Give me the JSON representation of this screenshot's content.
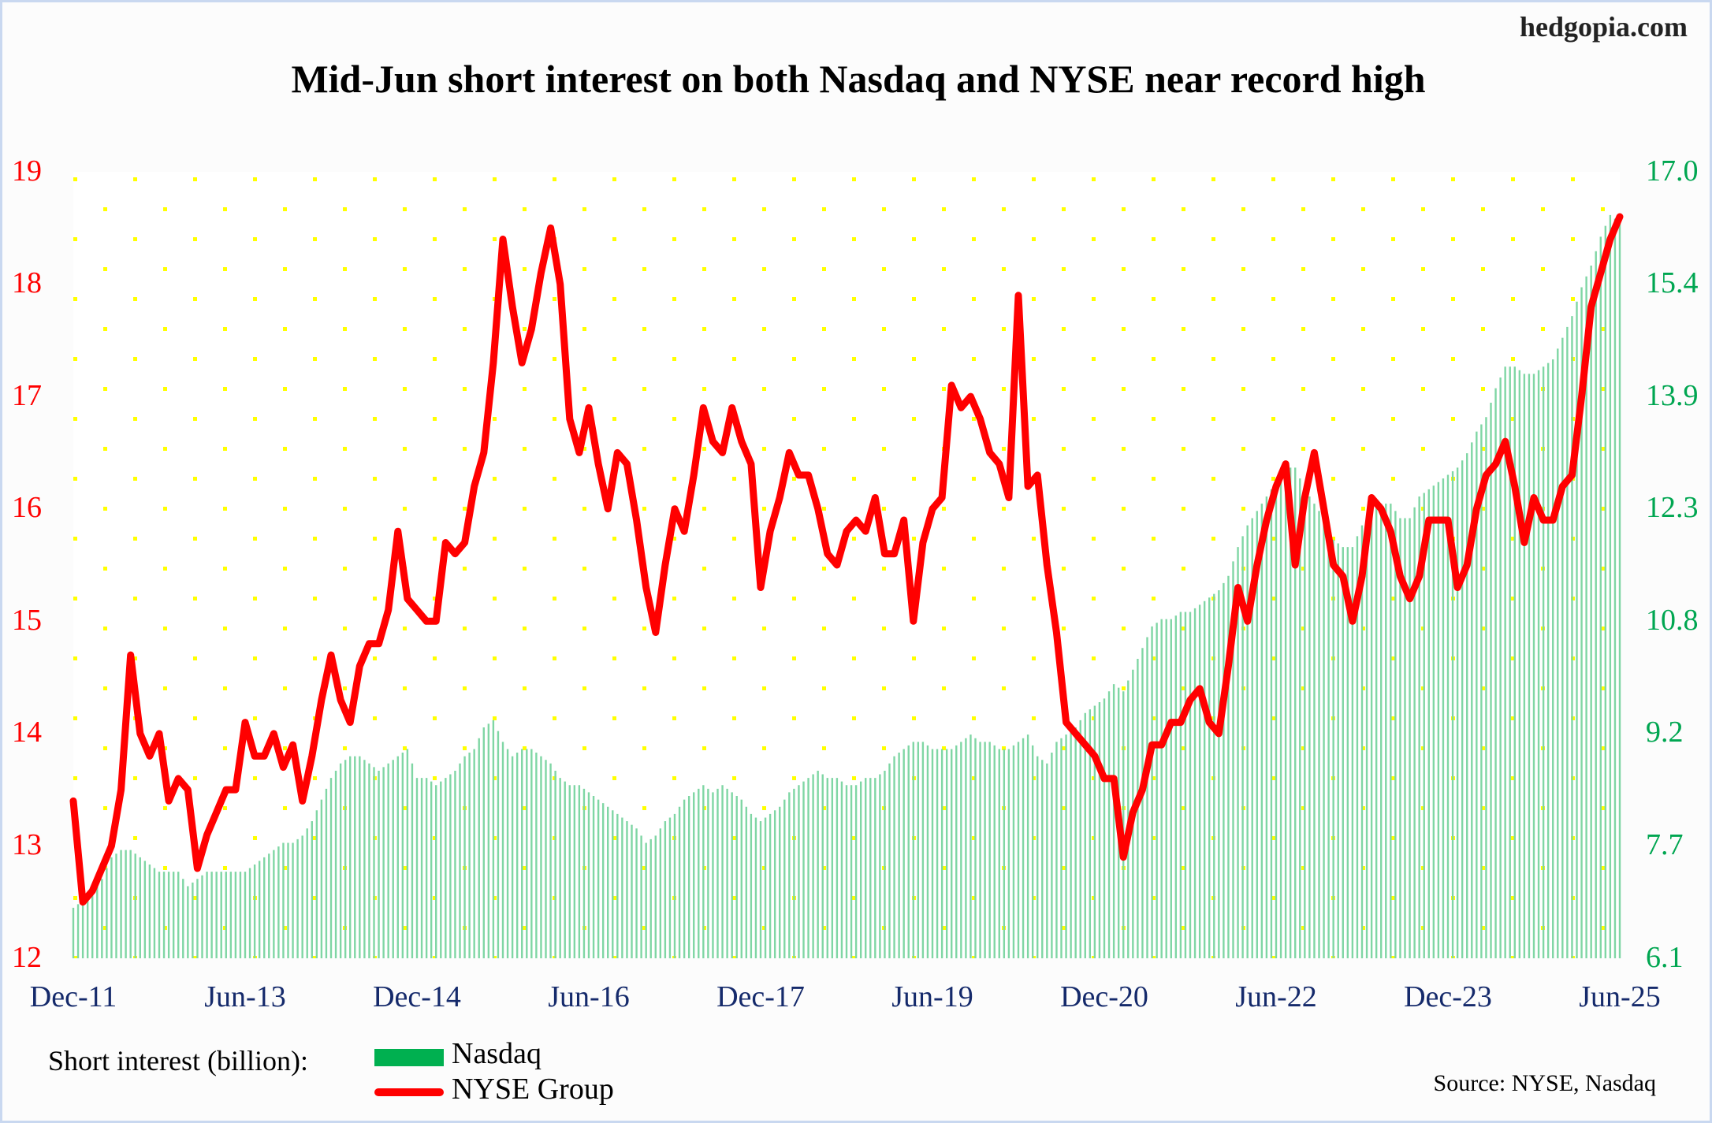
{
  "brand": "hedgopia.com",
  "chart_data": {
    "type": "bar+line",
    "title": "Mid-Jun short interest on both Nasdaq and NYSE near record high",
    "x_start": "Dec-11",
    "x_end": "Jun-25",
    "x_frequency": "monthly",
    "x_tick_labels": [
      "Dec-11",
      "Jun-13",
      "Dec-14",
      "Jun-16",
      "Dec-17",
      "Jun-19",
      "Dec-20",
      "Jun-22",
      "Dec-23",
      "Jun-25"
    ],
    "left_axis": {
      "series": "NYSE Group",
      "ylim": [
        12,
        19
      ],
      "ticks": [
        "19",
        "18",
        "17",
        "16",
        "15",
        "14",
        "13",
        "12"
      ],
      "color": "#ff0000"
    },
    "right_axis": {
      "series": "Nasdaq",
      "ylim": [
        6.1,
        17.0
      ],
      "ticks": [
        "17.0",
        "15.4",
        "13.9",
        "12.3",
        "10.8",
        "9.2",
        "7.7",
        "6.1"
      ],
      "color": "#00a651"
    },
    "legend_title": "Short interest (billion):",
    "series": [
      {
        "name": "Nasdaq",
        "type": "bar",
        "axis": "right",
        "color": "#7fd6a4",
        "values": [
          6.8,
          6.9,
          7.0,
          7.2,
          7.5,
          7.6,
          7.6,
          7.5,
          7.4,
          7.3,
          7.3,
          7.3,
          7.1,
          7.2,
          7.3,
          7.3,
          7.3,
          7.3,
          7.3,
          7.4,
          7.5,
          7.6,
          7.7,
          7.7,
          7.8,
          8.0,
          8.3,
          8.6,
          8.8,
          8.9,
          8.9,
          8.8,
          8.7,
          8.8,
          8.9,
          9.0,
          8.6,
          8.6,
          8.5,
          8.6,
          8.7,
          8.9,
          9.0,
          9.3,
          9.4,
          9.1,
          8.9,
          9.0,
          9.0,
          8.9,
          8.8,
          8.6,
          8.5,
          8.5,
          8.4,
          8.3,
          8.2,
          8.1,
          8.0,
          7.9,
          7.7,
          7.8,
          8.0,
          8.1,
          8.3,
          8.4,
          8.5,
          8.4,
          8.5,
          8.4,
          8.3,
          8.1,
          8.0,
          8.1,
          8.2,
          8.4,
          8.5,
          8.6,
          8.7,
          8.6,
          8.6,
          8.5,
          8.5,
          8.6,
          8.6,
          8.7,
          8.9,
          9.0,
          9.1,
          9.1,
          9.0,
          9.0,
          9.0,
          9.1,
          9.2,
          9.1,
          9.1,
          9.0,
          9.0,
          9.1,
          9.2,
          8.9,
          8.8,
          9.1,
          9.2,
          9.3,
          9.5,
          9.6,
          9.7,
          9.9,
          9.8,
          10.1,
          10.4,
          10.7,
          10.8,
          10.8,
          10.9,
          10.9,
          11.0,
          11.1,
          11.2,
          11.4,
          11.8,
          12.1,
          12.3,
          12.5,
          12.7,
          12.9,
          12.9,
          12.6,
          12.4,
          12.2,
          11.9,
          11.8,
          11.8,
          12.1,
          12.3,
          12.4,
          12.4,
          12.2,
          12.2,
          12.5,
          12.6,
          12.7,
          12.8,
          12.9,
          13.1,
          13.4,
          13.6,
          14.0,
          14.3,
          14.3,
          14.2,
          14.2,
          14.3,
          14.4,
          14.7,
          15.0,
          15.4,
          15.7,
          16.1,
          16.4,
          16.3
        ]
      },
      {
        "name": "NYSE Group",
        "type": "line",
        "axis": "left",
        "color": "#ff0000",
        "values": [
          13.4,
          12.5,
          12.6,
          12.8,
          13.0,
          13.5,
          14.7,
          14.0,
          13.8,
          14.0,
          13.4,
          13.6,
          13.5,
          12.8,
          13.1,
          13.3,
          13.5,
          13.5,
          14.1,
          13.8,
          13.8,
          14.0,
          13.7,
          13.9,
          13.4,
          13.8,
          14.3,
          14.7,
          14.3,
          14.1,
          14.6,
          14.8,
          14.8,
          15.1,
          15.8,
          15.2,
          15.1,
          15.0,
          15.0,
          15.7,
          15.6,
          15.7,
          16.2,
          16.5,
          17.3,
          18.4,
          17.8,
          17.3,
          17.6,
          18.1,
          18.5,
          18.0,
          16.8,
          16.5,
          16.9,
          16.4,
          16.0,
          16.5,
          16.4,
          15.9,
          15.3,
          14.9,
          15.5,
          16.0,
          15.8,
          16.3,
          16.9,
          16.6,
          16.5,
          16.9,
          16.6,
          16.4,
          15.3,
          15.8,
          16.1,
          16.5,
          16.3,
          16.3,
          16.0,
          15.6,
          15.5,
          15.8,
          15.9,
          15.8,
          16.1,
          15.6,
          15.6,
          15.9,
          15.0,
          15.7,
          16.0,
          16.1,
          17.1,
          16.9,
          17.0,
          16.8,
          16.5,
          16.4,
          16.1,
          17.9,
          16.2,
          16.3,
          15.5,
          14.9,
          14.1,
          14.0,
          13.9,
          13.8,
          13.6,
          13.6,
          12.9,
          13.3,
          13.5,
          13.9,
          13.9,
          14.1,
          14.1,
          14.3,
          14.4,
          14.1,
          14.0,
          14.6,
          15.3,
          15.0,
          15.5,
          15.9,
          16.2,
          16.4,
          15.5,
          16.1,
          16.5,
          16.0,
          15.5,
          15.4,
          15.0,
          15.4,
          16.1,
          16.0,
          15.8,
          15.4,
          15.2,
          15.4,
          15.9,
          15.9,
          15.9,
          15.3,
          15.5,
          16.0,
          16.3,
          16.4,
          16.6,
          16.2,
          15.7,
          16.1,
          15.9,
          15.9,
          16.2,
          16.3,
          17.0,
          17.8,
          18.1,
          18.4,
          18.6
        ]
      }
    ],
    "source": "Source: NYSE, Nasdaq",
    "grid": "dotted-background"
  }
}
